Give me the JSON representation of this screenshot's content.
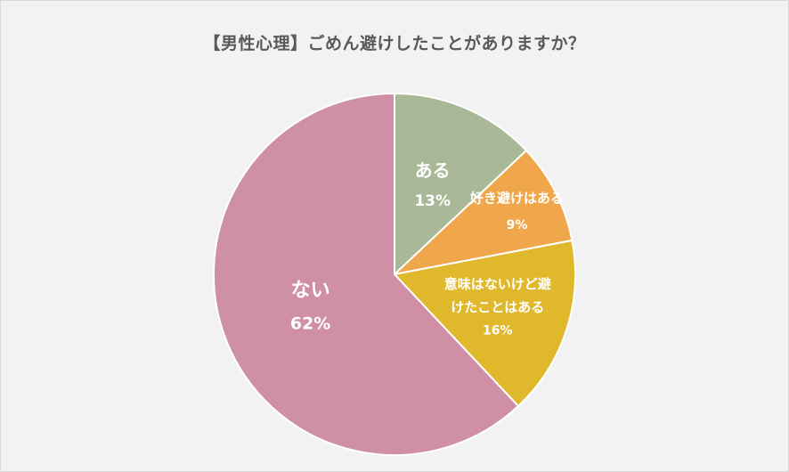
{
  "chart_data": {
    "type": "pie",
    "title": "【男性心理】ごめん避けしたことがありますか？",
    "slices": [
      {
        "label_lines": [
          "ある"
        ],
        "percent_label": "13%",
        "value": 13,
        "color": "#a9b897"
      },
      {
        "label_lines": [
          "好き避けはある"
        ],
        "percent_label": "9%",
        "value": 9,
        "color": "#f0a64b"
      },
      {
        "label_lines": [
          "意味はないけど避",
          "けたことはある"
        ],
        "percent_label": "16%",
        "value": 16,
        "color": "#e0b82c"
      },
      {
        "label_lines": [
          "ない"
        ],
        "percent_label": "62%",
        "value": 62,
        "color": "#cf8fa5"
      }
    ],
    "start_angle": "12 o'clock",
    "direction": "clockwise",
    "legend": "none"
  }
}
